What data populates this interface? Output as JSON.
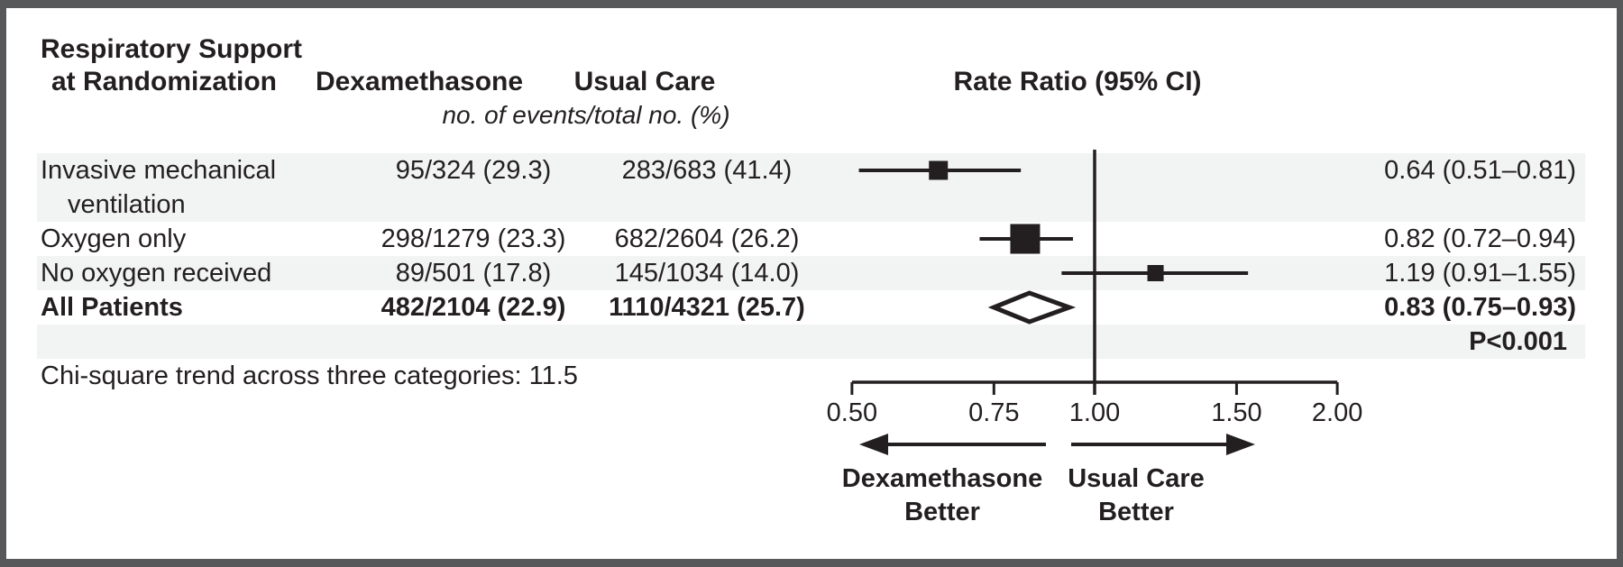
{
  "figure": {
    "header": {
      "col1_line1": "Respiratory Support",
      "col1_line2": "at Randomization",
      "col2": "Dexamethasone",
      "col3": "Usual Care",
      "col4": "Rate Ratio (95% CI)",
      "subheader": "no. of events/total no. (%)"
    },
    "rows": [
      {
        "label_line1": "Invasive mechanical",
        "label_line2": "ventilation",
        "dexamethasone": "95/324 (29.3)",
        "usual_care": "283/683 (41.4)",
        "rate_ratio": "0.64 (0.51–0.81)"
      },
      {
        "label_line1": "Oxygen only",
        "dexamethasone": "298/1279 (23.3)",
        "usual_care": "682/2604 (26.2)",
        "rate_ratio": "0.82 (0.72–0.94)"
      },
      {
        "label_line1": "No oxygen received",
        "dexamethasone": "89/501 (17.8)",
        "usual_care": "145/1034 (14.0)",
        "rate_ratio": "1.19 (0.91–1.55)"
      },
      {
        "label_line1": "All Patients",
        "dexamethasone": "482/2104 (22.9)",
        "usual_care": "1110/4321 (25.7)",
        "rate_ratio": "0.83 (0.75–0.93)"
      }
    ],
    "p_value": "P<0.001",
    "footnote": "Chi-square trend across three categories: 11.5"
  },
  "chart_data": {
    "type": "forest",
    "scale": "log",
    "title": "Rate Ratio (95% CI)",
    "axis": {
      "range": [
        0.5,
        2.0
      ],
      "tick_values": [
        0.5,
        0.75,
        1.0,
        1.5,
        2.0
      ],
      "tick_labels": [
        "0.50",
        "0.75",
        "1.00",
        "1.50",
        "2.00"
      ],
      "reference": 1.0
    },
    "rows": [
      {
        "label": "Invasive mechanical ventilation",
        "rr": 0.64,
        "ci_low": 0.51,
        "ci_high": 0.81,
        "marker": "square",
        "marker_size": 21
      },
      {
        "label": "Oxygen only",
        "rr": 0.82,
        "ci_low": 0.72,
        "ci_high": 0.94,
        "marker": "square",
        "marker_size": 33
      },
      {
        "label": "No oxygen received",
        "rr": 1.19,
        "ci_low": 0.91,
        "ci_high": 1.55,
        "marker": "square",
        "marker_size": 18
      },
      {
        "label": "All Patients",
        "rr": 0.83,
        "ci_low": 0.75,
        "ci_high": 0.93,
        "marker": "diamond"
      }
    ],
    "direction_labels": {
      "left_line1": "Dexamethasone",
      "left_line2": "Better",
      "right_line1": "Usual Care",
      "right_line2": "Better"
    }
  },
  "colors": {
    "text": "#231f20",
    "marker": "#231f20",
    "band": "#f2f3f3",
    "frame": "#57585a",
    "background": "#ffffff"
  }
}
